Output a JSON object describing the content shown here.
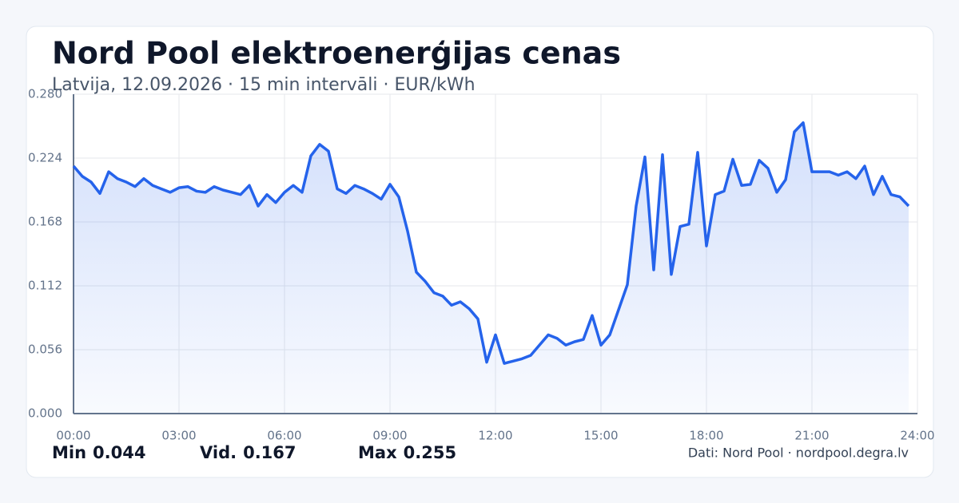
{
  "chart_data": {
    "type": "line",
    "title": "Nord Pool elektroenerģijas cenas",
    "subtitle": "Latvija, 12.09.2026 · 15 min intervāli · EUR/kWh",
    "x": [
      0,
      0.25,
      0.5,
      0.75,
      1,
      1.25,
      1.5,
      1.75,
      2,
      2.25,
      2.5,
      2.75,
      3,
      3.25,
      3.5,
      3.75,
      4,
      4.25,
      4.5,
      4.75,
      5,
      5.25,
      5.5,
      5.75,
      6,
      6.25,
      6.5,
      6.75,
      7,
      7.25,
      7.5,
      7.75,
      8,
      8.25,
      8.5,
      8.75,
      9,
      9.25,
      9.5,
      9.75,
      10,
      10.25,
      10.5,
      10.75,
      11,
      11.25,
      11.5,
      11.75,
      12,
      12.25,
      12.5,
      12.75,
      13,
      13.25,
      13.5,
      13.75,
      14,
      14.25,
      14.5,
      14.75,
      15,
      15.25,
      15.5,
      15.75,
      16,
      16.25,
      16.5,
      16.75,
      17,
      17.25,
      17.5,
      17.75,
      18,
      18.25,
      18.5,
      18.75,
      19,
      19.25,
      19.5,
      19.75,
      20,
      20.25,
      20.5,
      20.75,
      21,
      21.25,
      21.5,
      21.75,
      22,
      22.25,
      22.5,
      22.75,
      23,
      23.25,
      23.5,
      23.75
    ],
    "series": [
      {
        "name": "EUR/kWh",
        "color": "#2563eb",
        "values": [
          0.217,
          0.208,
          0.203,
          0.193,
          0.212,
          0.206,
          0.203,
          0.199,
          0.206,
          0.2,
          0.197,
          0.194,
          0.198,
          0.199,
          0.195,
          0.194,
          0.199,
          0.196,
          0.194,
          0.192,
          0.2,
          0.182,
          0.192,
          0.185,
          0.194,
          0.2,
          0.194,
          0.226,
          0.236,
          0.23,
          0.197,
          0.193,
          0.2,
          0.197,
          0.193,
          0.188,
          0.201,
          0.19,
          0.16,
          0.124,
          0.116,
          0.106,
          0.103,
          0.095,
          0.098,
          0.092,
          0.083,
          0.045,
          0.069,
          0.044,
          0.046,
          0.048,
          0.051,
          0.06,
          0.069,
          0.066,
          0.06,
          0.063,
          0.065,
          0.086,
          0.06,
          0.069,
          0.091,
          0.113,
          0.182,
          0.225,
          0.126,
          0.227,
          0.122,
          0.164,
          0.166,
          0.229,
          0.147,
          0.192,
          0.195,
          0.223,
          0.2,
          0.201,
          0.222,
          0.215,
          0.194,
          0.205,
          0.247,
          0.255,
          0.212,
          0.212,
          0.212,
          0.209,
          0.212,
          0.206,
          0.217,
          0.192,
          0.208,
          0.192,
          0.19,
          0.182
        ]
      }
    ],
    "xlim": [
      0,
      24
    ],
    "xticks": [
      {
        "value": 0,
        "label": "00:00"
      },
      {
        "value": 3,
        "label": "03:00"
      },
      {
        "value": 6,
        "label": "06:00"
      },
      {
        "value": 9,
        "label": "09:00"
      },
      {
        "value": 12,
        "label": "12:00"
      },
      {
        "value": 15,
        "label": "15:00"
      },
      {
        "value": 18,
        "label": "18:00"
      },
      {
        "value": 21,
        "label": "21:00"
      },
      {
        "value": 24,
        "label": "24:00"
      }
    ],
    "ylim": [
      0,
      0.28
    ],
    "yticks": [
      {
        "value": 0,
        "label": "0.000"
      },
      0.056,
      0.112,
      0.168,
      0.224,
      {
        "value": 0.28,
        "label": "0.280"
      }
    ],
    "grid": true,
    "stats": [
      {
        "label": "Min",
        "value": "0.044"
      },
      {
        "label": "Vid.",
        "value": "0.167"
      },
      {
        "label": "Max",
        "value": "0.255"
      }
    ],
    "source": "Dati: Nord Pool · nordpool.degra.lv"
  }
}
